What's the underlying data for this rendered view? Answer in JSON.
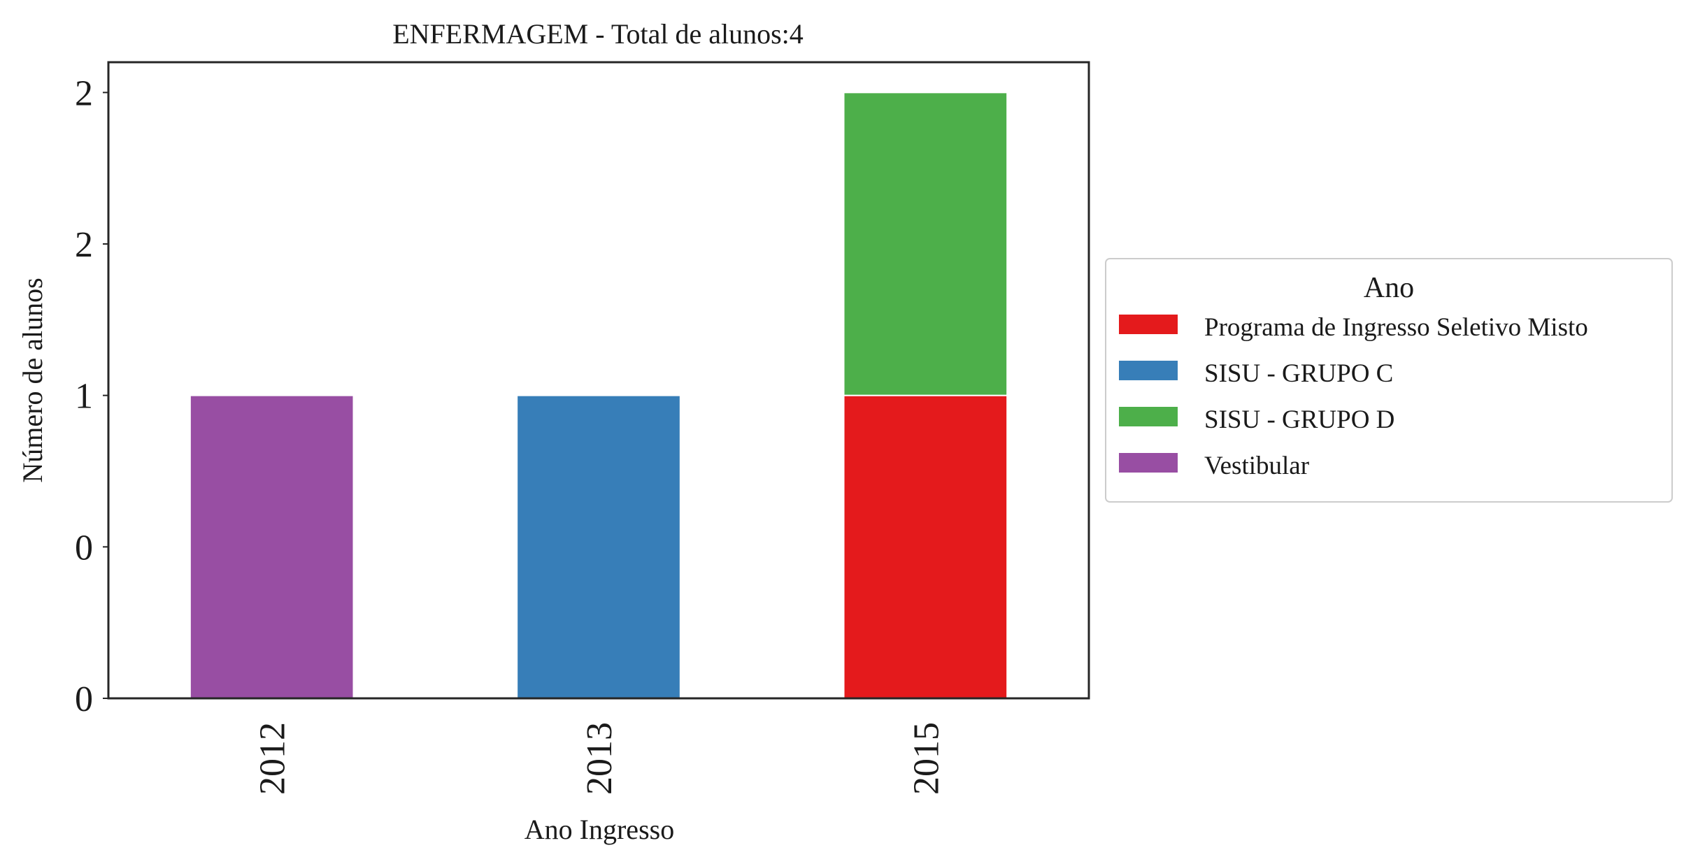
{
  "chart_data": {
    "type": "bar",
    "stacked": true,
    "title": "ENFERMAGEM - Total de alunos:4",
    "xlabel": "Ano Ingresso",
    "ylabel": "Número de alunos",
    "categories": [
      "2012",
      "2013",
      "2015"
    ],
    "series": [
      {
        "name": "Programa de Ingresso Seletivo Misto",
        "values": [
          0,
          0,
          1
        ],
        "color": "#e41a1c"
      },
      {
        "name": "SISU - GRUPO C",
        "values": [
          0,
          1,
          0
        ],
        "color": "#377eb8"
      },
      {
        "name": "SISU - GRUPO D",
        "values": [
          0,
          0,
          1
        ],
        "color": "#4daf4a"
      },
      {
        "name": "Vestibular",
        "values": [
          1,
          0,
          0
        ],
        "color": "#984ea3"
      }
    ],
    "ylim": [
      0,
      2.1
    ],
    "yticks": [
      0,
      0.5,
      1,
      1.5,
      2
    ],
    "ytick_labels": [
      "0",
      "0",
      "1",
      "2",
      "2"
    ],
    "grid": false,
    "legend": {
      "title": "Ano",
      "placement": "right-outside"
    }
  }
}
